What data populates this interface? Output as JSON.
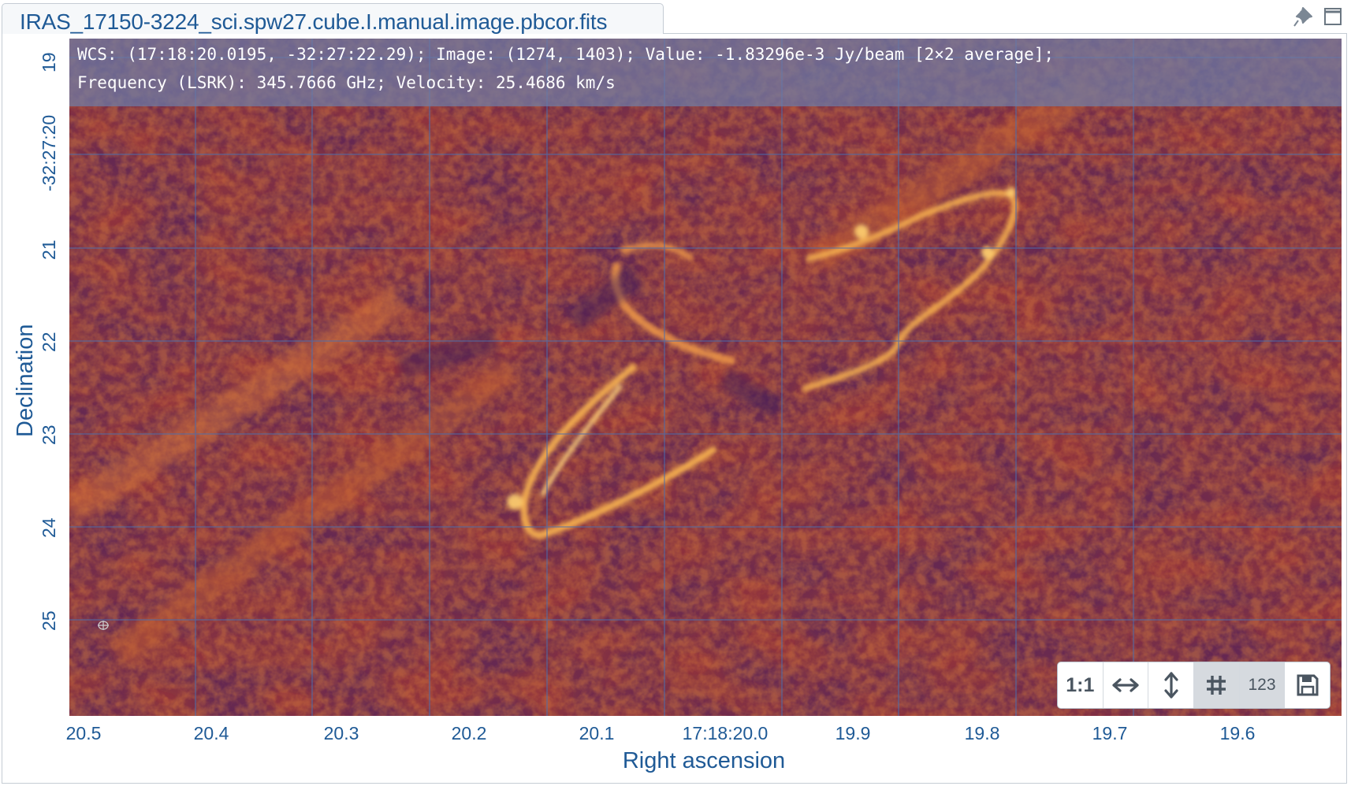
{
  "tab": {
    "title": "IRAS_17150-3224_sci.spw27.cube.I.manual.image.pbcor.fits"
  },
  "cursor_info": {
    "line1": "WCS: (17:18:20.0195, -32:27:22.29); Image: (1274, 1403); Value: -1.83296e-3 Jy/beam [2×2 average];",
    "line2": "Frequency (LSRK): 345.7666 GHz; Velocity: 25.4686 km/s"
  },
  "axes": {
    "x_label": "Right ascension",
    "y_label": "Declination",
    "x_ticks": [
      "20.5",
      "20.4",
      "20.3",
      "20.2",
      "20.1",
      "17:18:20.0",
      "19.9",
      "19.8",
      "19.7",
      "19.6"
    ],
    "y_ticks": [
      "19",
      "-32:27:20",
      "21",
      "22",
      "23",
      "24",
      "25"
    ]
  },
  "toolbar": {
    "one_to_one": "1:1",
    "fit_width_icon": "horizontal-arrows-icon",
    "fit_height_icon": "vertical-arrows-icon",
    "grid_icon": "grid-icon",
    "labels": "123",
    "save_icon": "floppy-disk-icon"
  },
  "colors": {
    "accent": "#1f5a96",
    "colormap_low": "#3b1f5c",
    "colormap_mid": "#b4402a",
    "colormap_high": "#ffd070",
    "grid": "#4b6fb0"
  }
}
